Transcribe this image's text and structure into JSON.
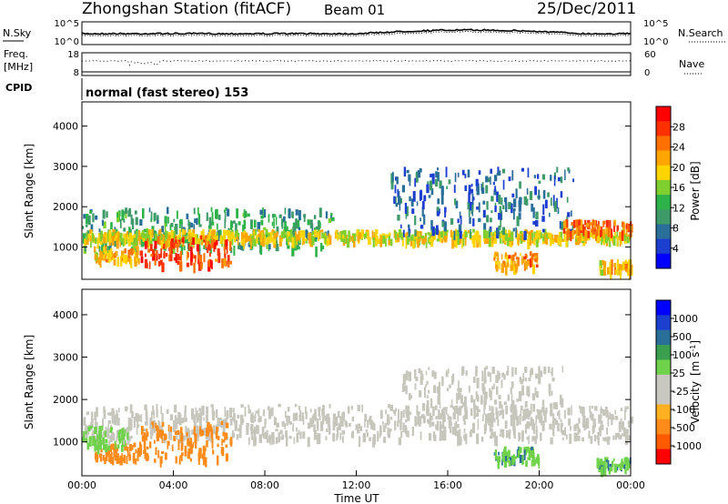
{
  "header": {
    "station": "Zhongshan Station (fitACF)",
    "beam": "Beam 01",
    "date": "25/Dec/2011"
  },
  "top_panels": {
    "nsky_label": "N.Sky",
    "nsky_ticks": [
      "10^5",
      "10^0"
    ],
    "nsearch_label": "N.Search",
    "nsearch_ticks": [
      "10^5",
      "10^0"
    ],
    "freq_label_1": "Freq.",
    "freq_label_2": "[MHz]",
    "freq_ticks": [
      "18",
      "8"
    ],
    "nave_label": "Nave",
    "nave_ticks": [
      "60",
      "0"
    ],
    "cpid_label": "CPID",
    "cpid_value": "normal (fast stereo) 153"
  },
  "colors": {
    "power_scale": [
      "#0000ff",
      "#1d3fd0",
      "#2a6f9a",
      "#3f9a6a",
      "#2db34a",
      "#7fcf2e",
      "#ffd400",
      "#ffa500",
      "#ff7000",
      "#ff3000",
      "#ff0000"
    ],
    "velocity_scale": [
      "#ff0000",
      "#ff5a00",
      "#ff8c1a",
      "#ffb020",
      "#c8c8c0",
      "#c8c8c0",
      "#6fd24a",
      "#3aa050",
      "#2a6f9a",
      "#1c3fd0",
      "#0000ff"
    ],
    "ground_scatter": "#c6c6bd"
  },
  "chart_data": [
    {
      "type": "heatmap",
      "quantity": "Power",
      "ylabel": "Slant Range [km]",
      "xlabel": "",
      "yticks": [
        "1000",
        "2000",
        "3000",
        "4000"
      ],
      "ylim": [
        200,
        4600
      ],
      "xlim": [
        0,
        24
      ],
      "colorbar_label": "Power [dB]",
      "colorbar_ticks": [
        "4",
        "8",
        "12",
        "16",
        "20",
        "24",
        "28"
      ],
      "colorbar_range": [
        0,
        30
      ],
      "scatter_bands": [
        {
          "t_start": 0.0,
          "t_end": 11.0,
          "r_low": 1000,
          "r_high": 2000,
          "level": 10
        },
        {
          "t_start": 0.0,
          "t_end": 24.0,
          "r_low": 1200,
          "r_high": 1450,
          "level": 18
        },
        {
          "t_start": 2.5,
          "t_end": 6.5,
          "r_low": 600,
          "r_high": 1300,
          "level": 26
        },
        {
          "t_start": 0.5,
          "t_end": 2.5,
          "r_low": 700,
          "r_high": 1050,
          "level": 20
        },
        {
          "t_start": 13.5,
          "t_end": 21.5,
          "r_low": 1400,
          "r_high": 3000,
          "level": 6
        },
        {
          "t_start": 18.0,
          "t_end": 20.0,
          "r_low": 550,
          "r_high": 900,
          "level": 22
        },
        {
          "t_start": 21.0,
          "t_end": 24.0,
          "r_low": 1400,
          "r_high": 1700,
          "level": 24
        },
        {
          "t_start": 22.5,
          "t_end": 24.0,
          "r_low": 400,
          "r_high": 700,
          "level": 20
        }
      ]
    },
    {
      "type": "heatmap",
      "quantity": "Velocity",
      "ylabel": "Slant Range [km]",
      "xlabel": "Time UT",
      "xticks": [
        "00:00",
        "04:00",
        "08:00",
        "12:00",
        "16:00",
        "20:00",
        "00:00"
      ],
      "yticks": [
        "1000",
        "2000",
        "3000",
        "4000"
      ],
      "ylim": [
        200,
        4600
      ],
      "xlim": [
        0,
        24
      ],
      "colorbar_label": "Velocity",
      "colorbar_unit": "[m s",
      "colorbar_unit_exp": "-1",
      "colorbar_unit_end": "]",
      "colorbar_ticks": [
        "1000",
        "500",
        "100",
        "25",
        "-25",
        "-100",
        "-500",
        "-1000"
      ],
      "scatter_bands": [
        {
          "t_start": 0.0,
          "t_end": 24.0,
          "r_low": 1100,
          "r_high": 1900,
          "kind": "ground"
        },
        {
          "t_start": 2.5,
          "t_end": 6.5,
          "r_low": 600,
          "r_high": 1500,
          "velocity": -200
        },
        {
          "t_start": 0.5,
          "t_end": 2.5,
          "r_low": 600,
          "r_high": 1000,
          "velocity": -150
        },
        {
          "t_start": 0.0,
          "t_end": 2.0,
          "r_low": 900,
          "r_high": 1400,
          "velocity": 60
        },
        {
          "t_start": 18.0,
          "t_end": 20.0,
          "r_low": 550,
          "r_high": 900,
          "velocity": 80
        },
        {
          "t_start": 22.5,
          "t_end": 24.0,
          "r_low": 400,
          "r_high": 650,
          "velocity": 80
        },
        {
          "t_start": 14.0,
          "t_end": 21.0,
          "r_low": 1600,
          "r_high": 2800,
          "kind": "ground"
        }
      ]
    }
  ]
}
